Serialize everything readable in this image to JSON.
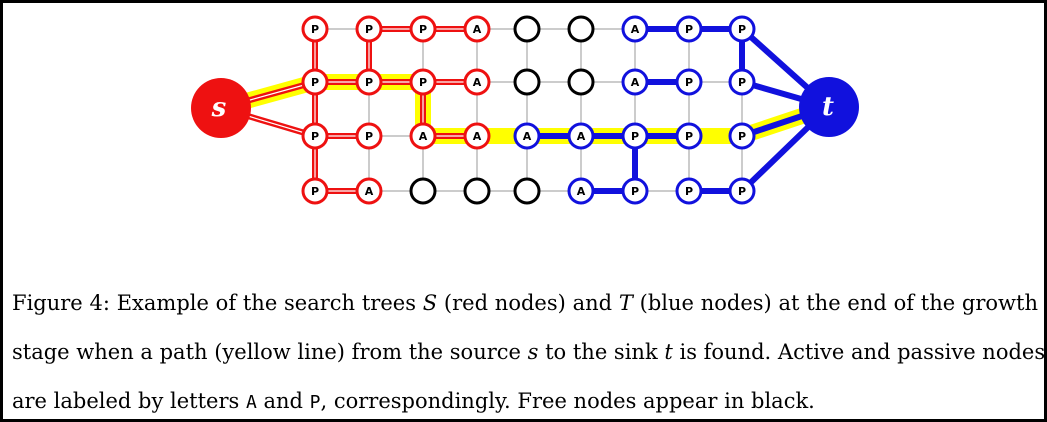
{
  "figure": {
    "caption": {
      "line1": {
        "prefix": "Figure 4: Example of the search trees ",
        "S": "S",
        "mid1": " (red nodes) and ",
        "T": "T",
        "suffix": " (blue nodes) at the end of the growth"
      },
      "line2": {
        "prefix": "stage when a path (yellow line) from the source ",
        "s": "s",
        "mid": " to the sink ",
        "t": "t",
        "suffix": " is found. Active and passive nodes"
      },
      "line3": {
        "prefix": "are labeled by letters ",
        "A": "A",
        "and": " and ",
        "P": "P",
        "suffix": ", correspondingly. Free nodes appear in black."
      }
    },
    "source_label": "s",
    "sink_label": "t",
    "colors": {
      "red": "#ee1111",
      "blue": "#1111dd",
      "black": "#000000",
      "yellow": "#ffff00",
      "grid": "#9a9a9a"
    },
    "grid": {
      "rows": [
        [
          "P",
          "P",
          "P",
          "A",
          "",
          "",
          "A",
          "P",
          "P"
        ],
        [
          "P",
          "P",
          "P",
          "A",
          "",
          "",
          "A",
          "P",
          "P"
        ],
        [
          "P",
          "P",
          "A",
          "A",
          "A",
          "A",
          "P",
          "P",
          "P"
        ],
        [
          "P",
          "A",
          "",
          "",
          "",
          "A",
          "P",
          "P",
          "P"
        ]
      ],
      "colors": [
        [
          "red",
          "red",
          "red",
          "red",
          "black",
          "black",
          "blue",
          "blue",
          "blue"
        ],
        [
          "red",
          "red",
          "red",
          "red",
          "black",
          "black",
          "blue",
          "blue",
          "blue"
        ],
        [
          "red",
          "red",
          "red",
          "red",
          "blue",
          "blue",
          "blue",
          "blue",
          "blue"
        ],
        [
          "red",
          "red",
          "black",
          "black",
          "black",
          "blue",
          "blue",
          "blue",
          "blue"
        ]
      ]
    },
    "tree_edges": {
      "red": [
        [
          "s",
          [
            1,
            0
          ]
        ],
        [
          "s",
          [
            2,
            0
          ]
        ],
        [
          [
            0,
            0
          ],
          [
            1,
            0
          ]
        ],
        [
          [
            1,
            0
          ],
          [
            2,
            0
          ]
        ],
        [
          [
            2,
            0
          ],
          [
            3,
            0
          ]
        ],
        [
          [
            1,
            0
          ],
          [
            1,
            1
          ]
        ],
        [
          [
            1,
            1
          ],
          [
            1,
            2
          ]
        ],
        [
          [
            1,
            2
          ],
          [
            1,
            3
          ]
        ],
        [
          [
            0,
            1
          ],
          [
            1,
            1
          ]
        ],
        [
          [
            0,
            1
          ],
          [
            0,
            2
          ]
        ],
        [
          [
            0,
            2
          ],
          [
            0,
            3
          ]
        ],
        [
          [
            1,
            2
          ],
          [
            2,
            2
          ]
        ],
        [
          [
            2,
            2
          ],
          [
            2,
            3
          ]
        ],
        [
          [
            2,
            0
          ],
          [
            2,
            1
          ]
        ],
        [
          [
            3,
            0
          ],
          [
            3,
            1
          ]
        ]
      ],
      "blue": [
        [
          "t",
          [
            0,
            8
          ]
        ],
        [
          "t",
          [
            1,
            8
          ]
        ],
        [
          "t",
          [
            2,
            8
          ]
        ],
        [
          "t",
          [
            3,
            8
          ]
        ],
        [
          [
            0,
            6
          ],
          [
            0,
            7
          ]
        ],
        [
          [
            0,
            7
          ],
          [
            0,
            8
          ]
        ],
        [
          [
            0,
            8
          ],
          [
            1,
            8
          ]
        ],
        [
          [
            1,
            6
          ],
          [
            1,
            7
          ]
        ],
        [
          [
            2,
            4
          ],
          [
            2,
            5
          ]
        ],
        [
          [
            2,
            5
          ],
          [
            2,
            6
          ]
        ],
        [
          [
            2,
            6
          ],
          [
            2,
            7
          ]
        ],
        [
          [
            2,
            6
          ],
          [
            3,
            6
          ]
        ],
        [
          [
            3,
            5
          ],
          [
            3,
            6
          ]
        ],
        [
          [
            3,
            7
          ],
          [
            3,
            8
          ]
        ]
      ]
    },
    "path": [
      "s",
      [
        1,
        0
      ],
      [
        1,
        1
      ],
      [
        1,
        2
      ],
      [
        2,
        2
      ],
      [
        2,
        3
      ],
      [
        2,
        4
      ],
      [
        2,
        5
      ],
      [
        2,
        6
      ],
      [
        2,
        7
      ],
      [
        2,
        8
      ],
      "t"
    ]
  }
}
